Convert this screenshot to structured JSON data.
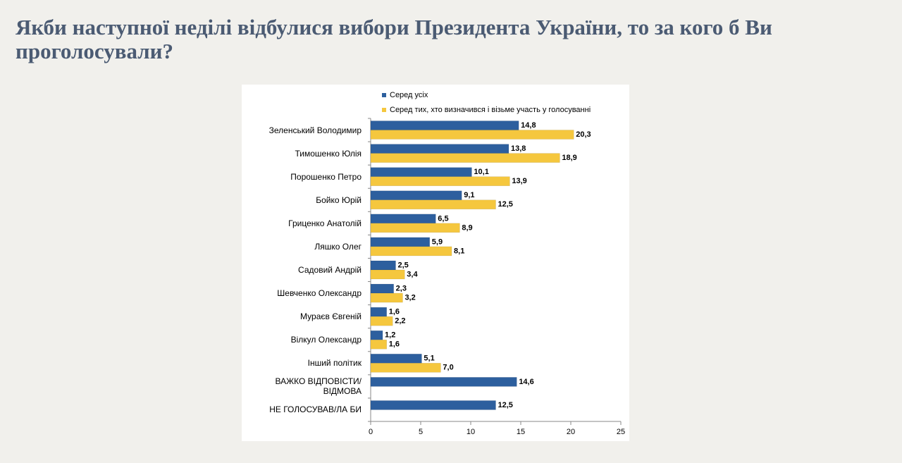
{
  "chart_data": {
    "type": "bar",
    "orientation": "horizontal",
    "title": "Якби наступної неділі відбулися вибори Президента України, то за кого б Ви проголосували?",
    "categories": [
      "Зеленський Володимир",
      "Тимошенко Юлія",
      "Порошенко Петро",
      "Бойко Юрій",
      "Гриценко Анатолій",
      "Ляшко Олег",
      "Садовий Андрій",
      "Шевченко Олександр",
      "Мураєв Євгеній",
      "Вілкул Олександр",
      "Інший політик",
      "ВАЖКО ВІДПОВІСТИ/ ВІДМОВА",
      "НЕ ГОЛОСУВАВ/ЛА БИ"
    ],
    "series": [
      {
        "name": "Серед усіх",
        "color": "#2d5f9e",
        "values": [
          14.8,
          13.8,
          10.1,
          9.1,
          6.5,
          5.9,
          2.5,
          2.3,
          1.6,
          1.2,
          5.1,
          14.6,
          12.5
        ],
        "value_labels": [
          "14,8",
          "13,8",
          "10,1",
          "9,1",
          "6,5",
          "5,9",
          "2,5",
          "2,3",
          "1,6",
          "1,2",
          "5,1",
          "14,6",
          "12,5"
        ]
      },
      {
        "name": "Серед тих, хто визначився і візьме участь у голосуванні",
        "color": "#f5c73e",
        "values": [
          20.3,
          18.9,
          13.9,
          12.5,
          8.9,
          8.1,
          3.4,
          3.2,
          2.2,
          1.6,
          7.0,
          null,
          null
        ],
        "value_labels": [
          "20,3",
          "18,9",
          "13,9",
          "12,5",
          "8,9",
          "8,1",
          "3,4",
          "3,2",
          "2,2",
          "1,6",
          "7,0",
          null,
          null
        ]
      }
    ],
    "xlim": [
      0,
      25
    ],
    "xticks": [
      0,
      5,
      10,
      15,
      20,
      25
    ],
    "grid": false
  }
}
